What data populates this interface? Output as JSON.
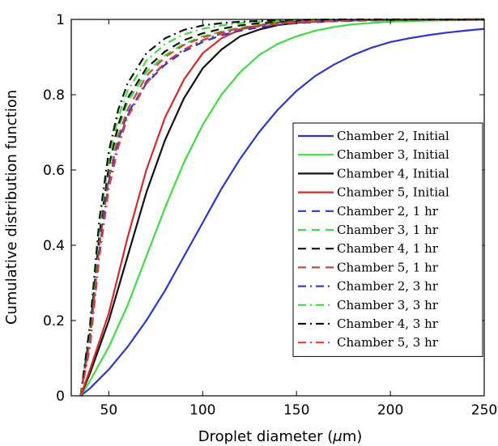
{
  "chart_data": {
    "type": "line",
    "xlabel": "Droplet diameter (",
    "xlabel_symbol": "μ",
    "xlabel_suffix": "m)",
    "ylabel": "Cumulative distribution function",
    "xlim": [
      30,
      250
    ],
    "ylim": [
      0,
      1
    ],
    "xticks": [
      50,
      100,
      150,
      200,
      250
    ],
    "xtick_labels": [
      "50",
      "100",
      "150",
      "200",
      "250"
    ],
    "yticks": [
      0,
      0.2,
      0.4,
      0.6,
      0.8,
      1
    ],
    "ytick_labels": [
      "0",
      "0.2",
      "0.4",
      "0.6",
      "0.8",
      "1"
    ],
    "grid": false,
    "legend_position": "lower-right",
    "series": [
      {
        "name": "Chamber 2, Initial",
        "color": "#2a37c7",
        "dash": "solid",
        "x": [
          35,
          40,
          50,
          60,
          70,
          80,
          90,
          100,
          110,
          120,
          130,
          140,
          150,
          160,
          170,
          180,
          190,
          200,
          210,
          220,
          230,
          240,
          250
        ],
        "values": [
          0,
          0.02,
          0.07,
          0.13,
          0.2,
          0.28,
          0.37,
          0.46,
          0.55,
          0.63,
          0.7,
          0.76,
          0.81,
          0.85,
          0.88,
          0.905,
          0.925,
          0.94,
          0.95,
          0.958,
          0.965,
          0.97,
          0.975
        ]
      },
      {
        "name": "Chamber 3, Initial",
        "color": "#3fdc3f",
        "dash": "solid",
        "x": [
          35,
          40,
          50,
          60,
          70,
          80,
          90,
          100,
          110,
          120,
          130,
          140,
          150,
          160,
          170,
          180,
          200,
          220,
          250
        ],
        "values": [
          0,
          0.04,
          0.13,
          0.24,
          0.37,
          0.5,
          0.62,
          0.72,
          0.8,
          0.86,
          0.905,
          0.935,
          0.955,
          0.97,
          0.98,
          0.987,
          0.994,
          0.997,
          0.999
        ]
      },
      {
        "name": "Chamber 4, Initial",
        "color": "#111111",
        "dash": "solid",
        "x": [
          35,
          40,
          50,
          60,
          70,
          80,
          90,
          100,
          110,
          120,
          130,
          140,
          150,
          170,
          200,
          250
        ],
        "values": [
          0,
          0.06,
          0.2,
          0.37,
          0.54,
          0.68,
          0.79,
          0.87,
          0.92,
          0.955,
          0.973,
          0.985,
          0.991,
          0.997,
          0.999,
          1.0
        ]
      },
      {
        "name": "Chamber 5, Initial",
        "color": "#d42a2a",
        "dash": "solid",
        "x": [
          35,
          40,
          50,
          60,
          70,
          80,
          90,
          100,
          110,
          120,
          130,
          140,
          150,
          170,
          200,
          250
        ],
        "values": [
          0,
          0.07,
          0.22,
          0.42,
          0.6,
          0.74,
          0.84,
          0.91,
          0.95,
          0.973,
          0.985,
          0.992,
          0.996,
          0.998,
          0.999,
          1.0
        ]
      },
      {
        "name": "Chamber 2, 1 hr",
        "color": "#2a37c7",
        "dash": "dashed",
        "x": [
          35,
          40,
          45,
          50,
          55,
          60,
          70,
          80,
          90,
          100,
          110,
          120,
          130,
          140,
          150,
          170,
          200,
          250
        ],
        "values": [
          0,
          0.15,
          0.4,
          0.58,
          0.68,
          0.75,
          0.83,
          0.88,
          0.915,
          0.94,
          0.958,
          0.97,
          0.979,
          0.985,
          0.99,
          0.995,
          0.998,
          1.0
        ]
      },
      {
        "name": "Chamber 3, 1 hr",
        "color": "#3fdc3f",
        "dash": "dashed",
        "x": [
          35,
          40,
          45,
          50,
          55,
          60,
          70,
          80,
          90,
          100,
          110,
          120,
          130,
          140,
          150,
          170,
          200,
          250
        ],
        "values": [
          0,
          0.17,
          0.43,
          0.61,
          0.71,
          0.78,
          0.86,
          0.905,
          0.935,
          0.955,
          0.968,
          0.978,
          0.985,
          0.99,
          0.993,
          0.997,
          0.999,
          1.0
        ]
      },
      {
        "name": "Chamber 4, 1 hr",
        "color": "#111111",
        "dash": "dashed",
        "x": [
          35,
          40,
          45,
          50,
          55,
          60,
          70,
          80,
          90,
          100,
          110,
          120,
          130,
          140,
          150,
          170,
          200,
          250
        ],
        "values": [
          0,
          0.17,
          0.43,
          0.61,
          0.72,
          0.79,
          0.87,
          0.915,
          0.945,
          0.963,
          0.975,
          0.984,
          0.99,
          0.994,
          0.996,
          0.998,
          0.999,
          1.0
        ]
      },
      {
        "name": "Chamber 5, 1 hr",
        "color": "#b8503a",
        "dash": "dashed",
        "x": [
          35,
          40,
          45,
          50,
          55,
          60,
          70,
          80,
          90,
          100,
          110,
          120,
          130,
          140,
          150,
          170,
          200,
          250
        ],
        "values": [
          0,
          0.15,
          0.4,
          0.58,
          0.69,
          0.76,
          0.85,
          0.9,
          0.932,
          0.952,
          0.966,
          0.977,
          0.984,
          0.989,
          0.993,
          0.997,
          0.999,
          1.0
        ]
      },
      {
        "name": "Chamber 2, 3 hr",
        "color": "#3c40c8",
        "dash": "dashdot",
        "x": [
          35,
          40,
          45,
          50,
          55,
          60,
          70,
          80,
          90,
          100,
          110,
          120,
          130,
          140,
          150,
          170,
          200,
          250
        ],
        "values": [
          0,
          0.14,
          0.39,
          0.57,
          0.67,
          0.745,
          0.835,
          0.885,
          0.92,
          0.945,
          0.962,
          0.974,
          0.982,
          0.988,
          0.992,
          0.996,
          0.998,
          1.0
        ]
      },
      {
        "name": "Chamber 3, 3 hr",
        "color": "#3fdc3f",
        "dash": "dashdot",
        "x": [
          35,
          40,
          45,
          50,
          55,
          60,
          70,
          80,
          90,
          100,
          110,
          120,
          130,
          140,
          150,
          170,
          200,
          250
        ],
        "values": [
          0,
          0.18,
          0.45,
          0.63,
          0.74,
          0.81,
          0.89,
          0.935,
          0.96,
          0.975,
          0.984,
          0.99,
          0.994,
          0.996,
          0.998,
          0.999,
          1.0,
          1.0
        ]
      },
      {
        "name": "Chamber 4, 3 hr",
        "color": "#111111",
        "dash": "dashdot",
        "x": [
          35,
          40,
          45,
          50,
          55,
          60,
          70,
          80,
          90,
          100,
          110,
          120,
          130,
          140,
          150,
          170,
          200,
          250
        ],
        "values": [
          0,
          0.19,
          0.47,
          0.65,
          0.76,
          0.83,
          0.91,
          0.95,
          0.972,
          0.984,
          0.99,
          0.994,
          0.996,
          0.998,
          0.999,
          1.0,
          1.0,
          1.0
        ]
      },
      {
        "name": "Chamber 5, 3 hr",
        "color": "#e03a3a",
        "dash": "dashdot",
        "x": [
          35,
          40,
          45,
          50,
          55,
          60,
          70,
          80,
          90,
          100,
          110,
          120,
          130,
          140,
          150,
          170,
          200,
          250
        ],
        "values": [
          0,
          0.13,
          0.37,
          0.55,
          0.66,
          0.74,
          0.83,
          0.885,
          0.92,
          0.945,
          0.962,
          0.974,
          0.982,
          0.988,
          0.992,
          0.996,
          0.998,
          1.0
        ]
      }
    ]
  }
}
